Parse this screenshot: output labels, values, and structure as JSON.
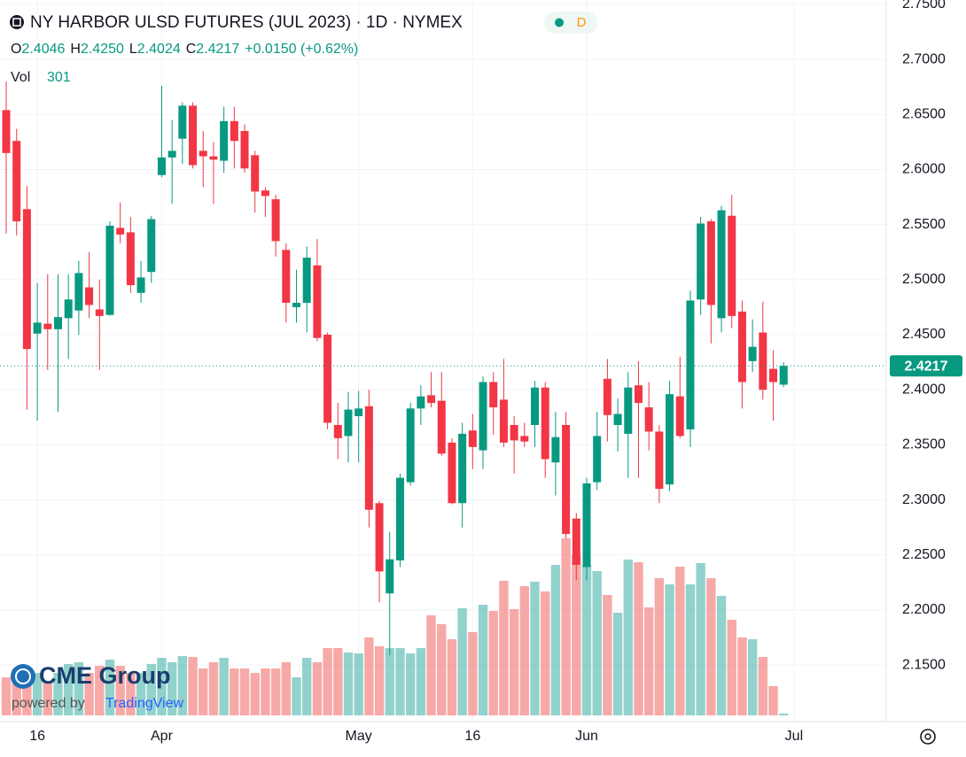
{
  "chart_data": {
    "type": "candlestick",
    "title": "NY HARBOR ULSD FUTURES (JUL 2023) · 1D · NYMEX",
    "interval_badge": "D",
    "ohlc_legend": [
      {
        "key": "O",
        "text": "2.4046"
      },
      {
        "key": "H",
        "text": "2.4250"
      },
      {
        "key": "L",
        "text": "2.4024"
      },
      {
        "key": "C",
        "text": "2.4217"
      }
    ],
    "change_text": "+0.0150 (+0.62%)",
    "volume_label": "Vol",
    "last_price_label": "2.4217",
    "up_color": "#089981",
    "down_color": "#f23645",
    "volume_up_color": "#26a69a80",
    "volume_down_color": "#ef535080",
    "open": [
      2.654,
      2.626,
      2.564,
      2.451,
      2.46,
      2.455,
      2.465,
      2.472,
      2.493,
      2.473,
      2.468,
      2.547,
      2.543,
      2.488,
      2.507,
      2.595,
      2.611,
      2.628,
      2.658,
      2.617,
      2.612,
      2.608,
      2.644,
      2.635,
      2.613,
      2.581,
      2.573,
      2.527,
      2.475,
      2.479,
      2.513,
      2.45,
      2.368,
      2.358,
      2.376,
      2.385,
      2.297,
      2.215,
      2.245,
      2.316,
      2.383,
      2.395,
      2.39,
      2.352,
      2.297,
      2.363,
      2.345,
      2.407,
      2.391,
      2.368,
      2.358,
      2.368,
      2.402,
      2.334,
      2.368,
      2.283,
      2.239,
      2.316,
      2.41,
      2.368,
      2.36,
      2.404,
      2.384,
      2.362,
      2.314,
      2.394,
      2.364,
      2.482,
      2.553,
      2.465,
      2.558,
      2.471,
      2.426,
      2.452,
      2.419,
      2.4046
    ],
    "high": [
      2.68,
      2.637,
      2.585,
      2.497,
      2.505,
      2.505,
      2.505,
      2.517,
      2.525,
      2.5,
      2.553,
      2.57,
      2.557,
      2.517,
      2.558,
      2.676,
      2.645,
      2.661,
      2.661,
      2.635,
      2.625,
      2.657,
      2.657,
      2.641,
      2.617,
      2.584,
      2.577,
      2.533,
      2.509,
      2.53,
      2.537,
      2.452,
      2.388,
      2.398,
      2.399,
      2.4,
      2.299,
      2.271,
      2.324,
      2.388,
      2.404,
      2.416,
      2.416,
      2.356,
      2.37,
      2.378,
      2.412,
      2.416,
      2.428,
      2.376,
      2.37,
      2.408,
      2.407,
      2.38,
      2.38,
      2.288,
      2.32,
      2.38,
      2.428,
      2.392,
      2.416,
      2.426,
      2.407,
      2.368,
      2.408,
      2.43,
      2.49,
      2.557,
      2.555,
      2.567,
      2.577,
      2.481,
      2.464,
      2.48,
      2.436,
      2.425
    ],
    "low": [
      2.542,
      2.54,
      2.382,
      2.372,
      2.418,
      2.38,
      2.428,
      2.45,
      2.465,
      2.418,
      2.467,
      2.533,
      2.488,
      2.479,
      2.497,
      2.593,
      2.569,
      2.605,
      2.601,
      2.584,
      2.569,
      2.597,
      2.601,
      2.597,
      2.561,
      2.557,
      2.521,
      2.461,
      2.461,
      2.452,
      2.444,
      2.364,
      2.337,
      2.334,
      2.334,
      2.275,
      2.207,
      2.159,
      2.239,
      2.313,
      2.368,
      2.384,
      2.34,
      2.296,
      2.275,
      2.328,
      2.328,
      2.359,
      2.348,
      2.324,
      2.348,
      2.348,
      2.32,
      2.304,
      2.265,
      2.227,
      2.227,
      2.309,
      2.353,
      2.344,
      2.32,
      2.32,
      2.345,
      2.297,
      2.308,
      2.356,
      2.348,
      2.468,
      2.442,
      2.452,
      2.456,
      2.383,
      2.416,
      2.391,
      2.372,
      2.4024
    ],
    "close": [
      2.615,
      2.553,
      2.437,
      2.461,
      2.455,
      2.466,
      2.482,
      2.506,
      2.477,
      2.467,
      2.549,
      2.541,
      2.495,
      2.502,
      2.555,
      2.611,
      2.617,
      2.658,
      2.604,
      2.612,
      2.609,
      2.644,
      2.626,
      2.601,
      2.58,
      2.576,
      2.535,
      2.479,
      2.479,
      2.52,
      2.447,
      2.37,
      2.356,
      2.382,
      2.383,
      2.291,
      2.235,
      2.246,
      2.32,
      2.383,
      2.394,
      2.388,
      2.342,
      2.297,
      2.36,
      2.348,
      2.407,
      2.384,
      2.352,
      2.354,
      2.353,
      2.402,
      2.337,
      2.357,
      2.269,
      2.241,
      2.315,
      2.358,
      2.377,
      2.378,
      2.402,
      2.388,
      2.362,
      2.31,
      2.396,
      2.358,
      2.481,
      2.551,
      2.477,
      2.563,
      2.467,
      2.407,
      2.439,
      2.4,
      2.407,
      2.4217
    ],
    "volume": [
      6450,
      7950,
      6450,
      7200,
      5700,
      7200,
      8700,
      9000,
      7200,
      8400,
      9450,
      8400,
      7200,
      7200,
      8700,
      9750,
      9000,
      10050,
      9900,
      7950,
      9000,
      9750,
      7950,
      7950,
      7200,
      7950,
      7950,
      9000,
      6450,
      9750,
      9000,
      11400,
      11400,
      10650,
      10500,
      13200,
      11700,
      11400,
      11400,
      10500,
      11400,
      16950,
      15450,
      12900,
      18150,
      14100,
      18750,
      17700,
      22800,
      18000,
      21900,
      22650,
      21000,
      25500,
      30000,
      27150,
      25500,
      24450,
      20400,
      17400,
      26400,
      25950,
      18300,
      23250,
      22200,
      25200,
      22200,
      25800,
      23250,
      20250,
      16200,
      13200,
      12900,
      9900,
      4950,
      301
    ],
    "volume_lim": [
      0,
      60000
    ],
    "ylim": [
      2.0986,
      2.754
    ],
    "yticks": [
      {
        "value": 2.15,
        "label": "2.1500"
      },
      {
        "value": 2.2,
        "label": "2.2000"
      },
      {
        "value": 2.25,
        "label": "2.2500"
      },
      {
        "value": 2.3,
        "label": "2.3000"
      },
      {
        "value": 2.35,
        "label": "2.3500"
      },
      {
        "value": 2.4,
        "label": "2.4000"
      },
      {
        "value": 2.45,
        "label": "2.4500"
      },
      {
        "value": 2.5,
        "label": "2.5000"
      },
      {
        "value": 2.55,
        "label": "2.5500"
      },
      {
        "value": 2.6,
        "label": "2.6000"
      },
      {
        "value": 2.65,
        "label": "2.6500"
      },
      {
        "value": 2.7,
        "label": "2.7000"
      },
      {
        "value": 2.75,
        "label": "2.7500"
      }
    ],
    "xlim": [
      -0.6,
      84.9
    ],
    "xticks": [
      {
        "value": 3,
        "label": "16"
      },
      {
        "value": 15,
        "label": "Apr"
      },
      {
        "value": 34,
        "label": "May"
      },
      {
        "value": 45,
        "label": "16"
      },
      {
        "value": 56,
        "label": "Jun"
      },
      {
        "value": 76,
        "label": "Jul"
      }
    ],
    "grid": true,
    "brand": "CME Group",
    "powered_by": "powered by",
    "powered_by_brand": "TradingView"
  }
}
